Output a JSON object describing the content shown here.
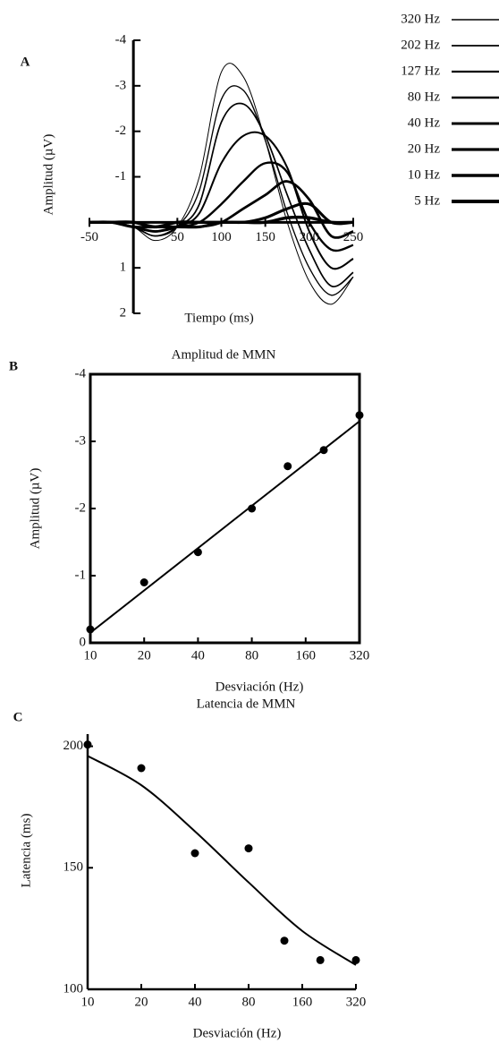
{
  "chart_data": [
    {
      "type": "line",
      "panel_label": "A",
      "y_label": "Amplitud (µV)",
      "x_label": "Tiempo (ms)",
      "x": [
        -50,
        -25,
        0,
        25,
        50,
        75,
        100,
        125,
        150,
        175,
        200,
        225,
        250
      ],
      "xlim": [
        -50,
        250
      ],
      "xticks": [
        -50,
        50,
        100,
        150,
        200,
        250
      ],
      "ylim": [
        2,
        -4
      ],
      "yticks": [
        -4,
        -3,
        -2,
        -1,
        1,
        2
      ],
      "legend": "right",
      "series": [
        {
          "name": "320 Hz",
          "color": "#000000",
          "values": [
            0,
            0,
            0.1,
            0.4,
            0.1,
            -1.0,
            -3.3,
            -3.2,
            -1.8,
            0,
            1.3,
            1.8,
            1.2
          ]
        },
        {
          "name": "202 Hz",
          "color": "#000000",
          "values": [
            0,
            0,
            0.1,
            0.3,
            0.1,
            -0.7,
            -2.7,
            -2.9,
            -1.8,
            -0.2,
            1.0,
            1.6,
            1.2
          ]
        },
        {
          "name": "127 Hz",
          "color": "#000000",
          "values": [
            0,
            0,
            0.1,
            0.3,
            0.1,
            -0.4,
            -2.2,
            -2.6,
            -1.9,
            -0.6,
            0.6,
            1.4,
            1.1
          ]
        },
        {
          "name": "80 Hz",
          "color": "#000000",
          "values": [
            0,
            0,
            0.1,
            0.2,
            0.1,
            -0.2,
            -1.3,
            -1.9,
            -1.9,
            -1.2,
            0.2,
            1.0,
            0.8
          ]
        },
        {
          "name": "40 Hz",
          "color": "#000000",
          "values": [
            0,
            0,
            0.1,
            0.2,
            0.1,
            0,
            -0.4,
            -0.9,
            -1.3,
            -1.1,
            0,
            0.6,
            0.5
          ]
        },
        {
          "name": "20 Hz",
          "color": "#000000",
          "values": [
            0,
            0,
            0.1,
            0.2,
            0.1,
            0.1,
            0,
            -0.3,
            -0.6,
            -0.9,
            -0.5,
            0.3,
            0.2
          ]
        },
        {
          "name": "10 Hz",
          "color": "#000000",
          "values": [
            0,
            0,
            0.1,
            0.1,
            0.1,
            0.1,
            0,
            0,
            -0.1,
            -0.3,
            -0.4,
            0,
            0
          ]
        },
        {
          "name": "5 Hz",
          "color": "#000000",
          "values": [
            0,
            0,
            0,
            0.1,
            0,
            0,
            0,
            0,
            0,
            -0.1,
            -0.1,
            0,
            0
          ]
        }
      ]
    },
    {
      "type": "scatter",
      "panel_label": "B",
      "title": "Amplitud de MMN",
      "y_label": "Amplitud (µV)",
      "x_label": "Desviación (Hz)",
      "x": [
        10,
        20,
        40,
        80,
        127,
        202,
        320
      ],
      "values": [
        -0.2,
        -0.9,
        -1.35,
        -2.0,
        -2.63,
        -2.87,
        -3.39
      ],
      "fit_x": [
        10,
        320
      ],
      "fit_values": [
        -0.15,
        -3.3
      ],
      "xscale": "log",
      "xlim": [
        10,
        320
      ],
      "xticks": [
        10,
        20,
        40,
        80,
        160,
        320
      ],
      "ylim": [
        0,
        -4
      ],
      "yticks": [
        0,
        -1,
        -2,
        -3,
        -4
      ],
      "frame": true,
      "color": "#000000"
    },
    {
      "type": "scatter",
      "panel_label": "C",
      "title": "Latencia de MMN",
      "y_label": "Latencia (ms)",
      "x_label": "Desviación (Hz)",
      "x": [
        10,
        20,
        40,
        80,
        127,
        202,
        320
      ],
      "values": [
        200.7,
        191,
        156,
        158,
        120,
        112,
        112
      ],
      "fit_x": [
        10,
        20,
        40,
        80,
        160,
        320
      ],
      "fit_values": [
        196,
        184,
        165,
        144,
        124,
        110
      ],
      "xscale": "log",
      "xlim": [
        10,
        320
      ],
      "xticks": [
        10,
        20,
        40,
        80,
        160,
        320
      ],
      "ylim": [
        100,
        205
      ],
      "yticks": [
        100,
        150,
        200
      ],
      "frame": false,
      "color": "#000000"
    }
  ]
}
